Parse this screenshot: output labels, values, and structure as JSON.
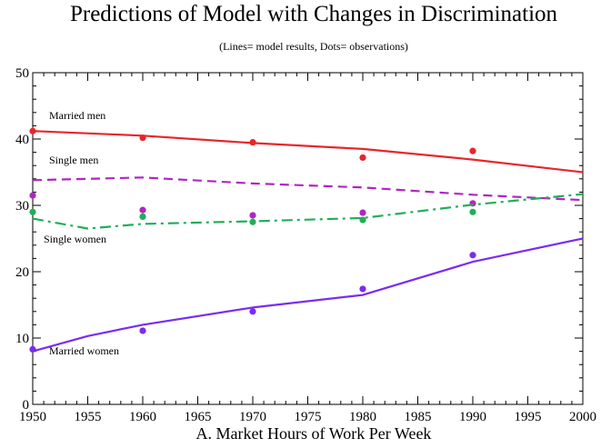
{
  "chart_data": {
    "type": "line",
    "title": "Predictions of Model with Changes in Discrimination",
    "subtitle": "(Lines= model results, Dots= observations)",
    "xlabel": "A. Market Hours of Work Per Week",
    "ylabel": "",
    "xlim": [
      1950,
      2000
    ],
    "ylim": [
      0,
      50
    ],
    "x_ticks": [
      "1950",
      "1955",
      "1960",
      "1965",
      "1970",
      "1975",
      "1980",
      "1985",
      "1990",
      "1995",
      "2000"
    ],
    "y_ticks": [
      "0",
      "10",
      "20",
      "30",
      "40",
      "50"
    ],
    "grid": false,
    "series": [
      {
        "name": "Married men",
        "color": "#e8262b",
        "dash": "solid",
        "model": [
          [
            1950,
            41.2
          ],
          [
            1960,
            40.5
          ],
          [
            1970,
            39.4
          ],
          [
            1980,
            38.5
          ],
          [
            1990,
            36.9
          ],
          [
            2000,
            35.0
          ]
        ],
        "observations": [
          [
            1950,
            41.2
          ],
          [
            1960,
            40.2
          ],
          [
            1970,
            39.5
          ],
          [
            1980,
            37.2
          ],
          [
            1990,
            38.2
          ]
        ]
      },
      {
        "name": "Single men",
        "color": "#b026c2",
        "dash": "dashed",
        "model": [
          [
            1950,
            33.8
          ],
          [
            1960,
            34.2
          ],
          [
            1970,
            33.3
          ],
          [
            1980,
            32.7
          ],
          [
            1990,
            31.6
          ],
          [
            2000,
            30.8
          ]
        ],
        "observations": [
          [
            1950,
            31.5
          ],
          [
            1960,
            29.3
          ],
          [
            1970,
            28.5
          ],
          [
            1980,
            28.9
          ],
          [
            1990,
            30.3
          ]
        ]
      },
      {
        "name": "Single women",
        "color": "#1fae5a",
        "dash": "dashdot",
        "model": [
          [
            1950,
            28.0
          ],
          [
            1955,
            26.5
          ],
          [
            1960,
            27.2
          ],
          [
            1970,
            27.6
          ],
          [
            1980,
            28.1
          ],
          [
            1990,
            30.1
          ],
          [
            2000,
            31.7
          ]
        ],
        "observations": [
          [
            1950,
            29.0
          ],
          [
            1960,
            28.3
          ],
          [
            1970,
            27.5
          ],
          [
            1980,
            27.8
          ],
          [
            1990,
            29.0
          ]
        ]
      },
      {
        "name": "Married women",
        "color": "#7a2cf0",
        "dash": "solid",
        "model": [
          [
            1950,
            8.0
          ],
          [
            1955,
            10.3
          ],
          [
            1960,
            12.0
          ],
          [
            1970,
            14.6
          ],
          [
            1980,
            16.5
          ],
          [
            1990,
            21.5
          ],
          [
            2000,
            25.0
          ]
        ],
        "observations": [
          [
            1950,
            8.3
          ],
          [
            1960,
            11.1
          ],
          [
            1970,
            14.0
          ],
          [
            1980,
            17.4
          ],
          [
            1990,
            22.5
          ]
        ]
      }
    ]
  }
}
